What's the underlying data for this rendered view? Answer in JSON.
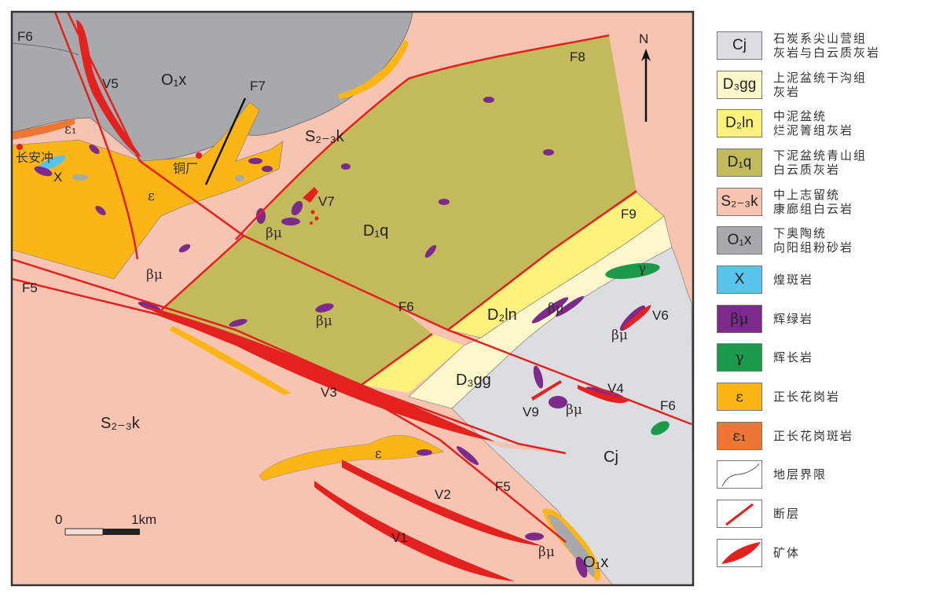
{
  "colors": {
    "S23k": "#f7c4b1",
    "O1x": "#a8a9ac",
    "D1q": "#c3bb5b",
    "D2ln": "#fdf27c",
    "D3gg": "#fdf8cb",
    "Cj": "#dcdde0",
    "epsilon": "#fbb616",
    "epsilon1": "#ee7634",
    "betamu": "#7c2b8c",
    "gamma": "#1b9a4b",
    "x": "#58c4eb",
    "fault": "#e3211f",
    "ore": "#e3211f"
  },
  "map": {
    "north": "N",
    "scale": {
      "zero": "0",
      "end": "1km"
    },
    "labels": {
      "f6_a": "F6",
      "f6_b": "F6",
      "f6_c": "F6",
      "f5_a": "F5",
      "f5_b": "F5",
      "f7": "F7",
      "f8": "F8",
      "f9": "F9",
      "v1": "V1",
      "v2": "V2",
      "v3": "V3",
      "v4": "V4",
      "v5": "V5",
      "v6": "V6",
      "v7": "V7",
      "v9": "V9",
      "o1x_a": "O₁x",
      "o1x_b": "O₁x",
      "s23k_a": "S₂₋₃k",
      "s23k_b": "S₂₋₃k",
      "d1q": "D₁q",
      "d2ln": "D₂ln",
      "d3gg": "D₃gg",
      "cj": "Cj",
      "eps1": "ε₁",
      "eps_a": "ε",
      "eps_b": "ε",
      "x": "X",
      "gamma": "γ",
      "bm_a": "βμ",
      "bm_b": "βμ",
      "bm_c": "βμ",
      "bm_d": "βμ",
      "bm_e": "βμ",
      "bm_f": "βμ",
      "bm_g": "βμ",
      "changanchong": "长安冲",
      "tongchang": "铜厂"
    }
  },
  "legend": [
    {
      "symbol": "Cj",
      "text": "石炭系尖山营组\n灰岩与白云质灰岩",
      "color": "#dcdde0"
    },
    {
      "symbol": "D₃gg",
      "text": "上泥盆统干沟组\n灰岩",
      "color": "#fdf8cb"
    },
    {
      "symbol": "D₂ln",
      "text": "中泥盆统\n烂泥箐组灰岩",
      "color": "#fdf27c"
    },
    {
      "symbol": "D₁q",
      "text": "下泥盆统青山组\n白云质灰岩",
      "color": "#c3bb5b"
    },
    {
      "symbol": "S₂₋₃k",
      "text": "中上志留统\n康廊组白云岩",
      "color": "#f7c4b1"
    },
    {
      "symbol": "O₁x",
      "text": "下奥陶统\n向阳组粉砂岩",
      "color": "#a8a9ac"
    },
    {
      "symbol": "X",
      "text": "煌斑岩",
      "color": "#58c4eb"
    },
    {
      "symbol": "βμ",
      "text": "辉绿岩",
      "color": "#7c2b8c"
    },
    {
      "symbol": "γ",
      "text": "辉长岩",
      "color": "#1b9a4b"
    },
    {
      "symbol": "ε",
      "text": "正长花岗岩",
      "color": "#fbb616"
    },
    {
      "symbol": "ε₁",
      "text": "正长花岗斑岩",
      "color": "#ee7634"
    },
    {
      "symbol": "boundary-line",
      "text": "地层界限",
      "color": "#ffffff"
    },
    {
      "symbol": "fault-line",
      "text": "断层",
      "color": "#ffffff"
    },
    {
      "symbol": "ore-body",
      "text": "矿体",
      "color": "#ffffff"
    }
  ]
}
